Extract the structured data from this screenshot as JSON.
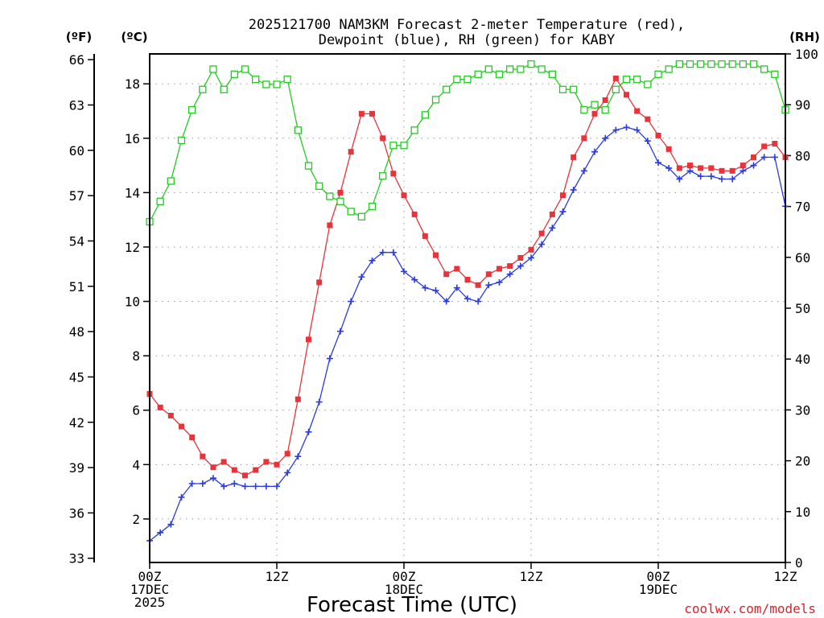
{
  "chart_data": {
    "type": "line",
    "title_lines": [
      "2025121700 NAM3KM Forecast 2-meter Temperature (red),",
      "Dewpoint (blue), RH (green) for KABY"
    ],
    "xlabel": "Forecast Time (UTC)",
    "credit": "coolwx.com/models",
    "left_unit_f": "(ºF)",
    "left_unit_c": "(ºC)",
    "right_unit": "(RH)",
    "x_range_hours": [
      0,
      60
    ],
    "x_ticks": [
      {
        "hour": 0,
        "lines": [
          "00Z",
          "17DEC",
          "2025"
        ]
      },
      {
        "hour": 12,
        "lines": [
          "12Z"
        ]
      },
      {
        "hour": 24,
        "lines": [
          "00Z",
          "18DEC"
        ]
      },
      {
        "hour": 36,
        "lines": [
          "12Z"
        ]
      },
      {
        "hour": 48,
        "lines": [
          "00Z",
          "19DEC"
        ]
      },
      {
        "hour": 60,
        "lines": [
          "12Z"
        ]
      }
    ],
    "celsius_ticks": [
      2,
      4,
      6,
      8,
      10,
      12,
      14,
      16,
      18
    ],
    "fahrenheit_ticks": [
      33,
      36,
      39,
      42,
      45,
      48,
      51,
      54,
      57,
      60,
      63,
      66
    ],
    "rh_ticks": [
      0,
      10,
      20,
      30,
      40,
      50,
      60,
      70,
      80,
      90,
      100
    ],
    "ylim_celsius": [
      0.4,
      19.1
    ],
    "ylim_rh": [
      0,
      100
    ],
    "series": [
      {
        "name": "Temperature",
        "axis": "celsius",
        "color": "#e8333a",
        "marker": "filled-square",
        "x": [
          0,
          1,
          2,
          3,
          4,
          5,
          6,
          7,
          8,
          9,
          10,
          11,
          12,
          13,
          14,
          15,
          16,
          17,
          18,
          19,
          20,
          21,
          22,
          23,
          24,
          25,
          26,
          27,
          28,
          29,
          30,
          31,
          32,
          33,
          34,
          35,
          36,
          37,
          38,
          39,
          40,
          41,
          42,
          43,
          44,
          45,
          46,
          47,
          48,
          49,
          50,
          51,
          52,
          53,
          54,
          55,
          56,
          57,
          58,
          59,
          60
        ],
        "values": [
          6.6,
          6.1,
          5.8,
          5.4,
          5.0,
          4.3,
          3.9,
          4.1,
          3.8,
          3.6,
          3.8,
          4.1,
          4.0,
          4.4,
          6.4,
          8.6,
          10.7,
          12.8,
          14.0,
          15.5,
          16.9,
          16.9,
          16.0,
          14.7,
          13.9,
          13.2,
          12.4,
          11.7,
          11.0,
          11.2,
          10.8,
          10.6,
          11.0,
          11.2,
          11.3,
          11.6,
          11.9,
          12.5,
          13.2,
          13.9,
          15.3,
          16.0,
          16.9,
          17.4,
          18.2,
          17.6,
          17.0,
          16.7,
          16.1,
          15.6,
          14.9,
          15.0,
          14.9,
          14.9,
          14.8,
          14.8,
          15.0,
          15.3,
          15.7,
          15.8,
          15.3
        ]
      },
      {
        "name": "Dewpoint",
        "axis": "celsius",
        "color": "#2a3ae0",
        "marker": "plus",
        "x": [
          0,
          1,
          2,
          3,
          4,
          5,
          6,
          7,
          8,
          9,
          10,
          11,
          12,
          13,
          14,
          15,
          16,
          17,
          18,
          19,
          20,
          21,
          22,
          23,
          24,
          25,
          26,
          27,
          28,
          29,
          30,
          31,
          32,
          33,
          34,
          35,
          36,
          37,
          38,
          39,
          40,
          41,
          42,
          43,
          44,
          45,
          46,
          47,
          48,
          49,
          50,
          51,
          52,
          53,
          54,
          55,
          56,
          57,
          58,
          59,
          60
        ],
        "values": [
          1.2,
          1.5,
          1.8,
          2.8,
          3.3,
          3.3,
          3.5,
          3.2,
          3.3,
          3.2,
          3.2,
          3.2,
          3.2,
          3.7,
          4.3,
          5.2,
          6.3,
          7.9,
          8.9,
          10.0,
          10.9,
          11.5,
          11.8,
          11.8,
          11.1,
          10.8,
          10.5,
          10.4,
          10.0,
          10.5,
          10.1,
          10.0,
          10.6,
          10.7,
          11.0,
          11.3,
          11.6,
          12.1,
          12.7,
          13.3,
          14.1,
          14.8,
          15.5,
          16.0,
          16.3,
          16.4,
          16.3,
          15.9,
          15.1,
          14.9,
          14.5,
          14.8,
          14.6,
          14.6,
          14.5,
          14.5,
          14.8,
          15.0,
          15.3,
          15.3,
          13.5
        ]
      },
      {
        "name": "RH",
        "axis": "rh",
        "color": "#22cc22",
        "marker": "open-square",
        "x": [
          0,
          1,
          2,
          3,
          4,
          5,
          6,
          7,
          8,
          9,
          10,
          11,
          12,
          13,
          14,
          15,
          16,
          17,
          18,
          19,
          20,
          21,
          22,
          23,
          24,
          25,
          26,
          27,
          28,
          29,
          30,
          31,
          32,
          33,
          34,
          35,
          36,
          37,
          38,
          39,
          40,
          41,
          42,
          43,
          44,
          45,
          46,
          47,
          48,
          49,
          50,
          51,
          52,
          53,
          54,
          55,
          56,
          57,
          58,
          59,
          60
        ],
        "values": [
          67,
          71,
          75,
          83,
          89,
          93,
          97,
          93,
          96,
          97,
          95,
          94,
          94,
          95,
          85,
          78,
          74,
          72,
          71,
          69,
          68,
          70,
          76,
          82,
          82,
          85,
          88,
          91,
          93,
          95,
          95,
          96,
          97,
          96,
          97,
          97,
          98,
          97,
          96,
          93,
          93,
          89,
          90,
          89,
          93,
          95,
          95,
          94,
          96,
          97,
          98,
          98,
          98,
          98,
          98,
          98,
          98,
          98,
          97,
          96,
          89
        ]
      }
    ]
  }
}
